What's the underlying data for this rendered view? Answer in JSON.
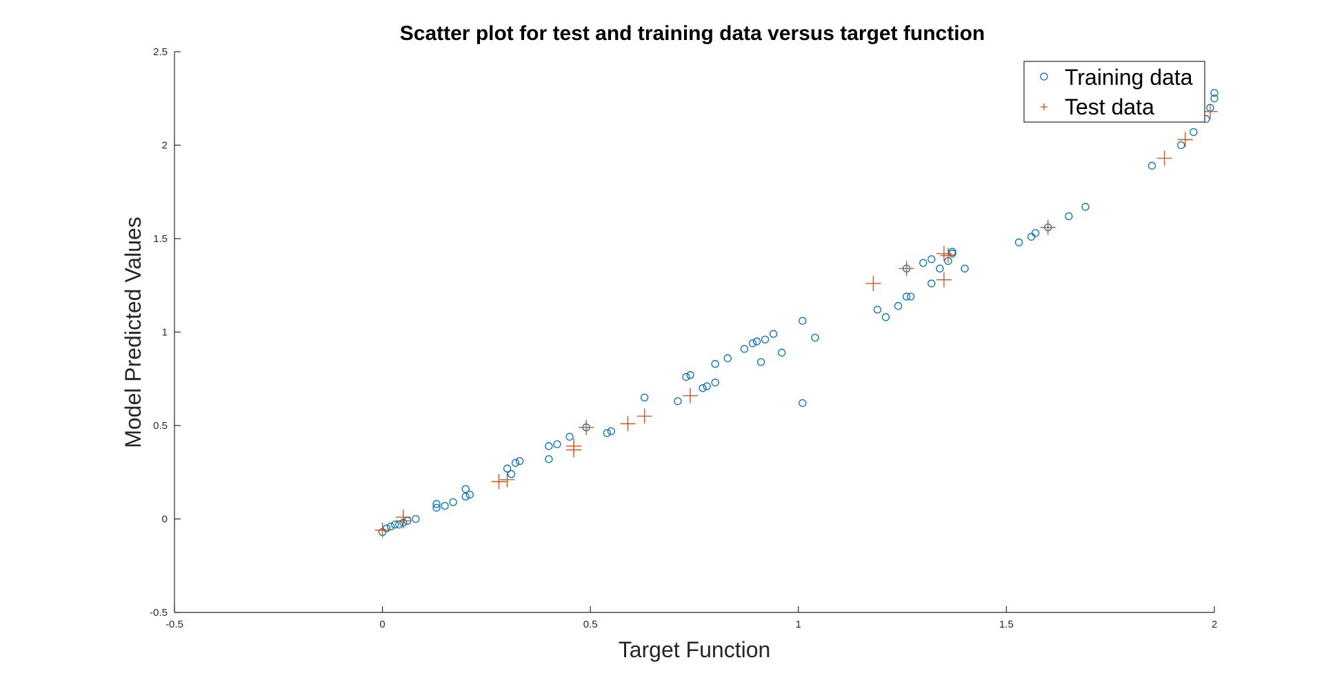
{
  "chart_data": {
    "type": "scatter",
    "title": "Scatter plot for test and training data versus target function",
    "xlabel": "Target Function",
    "ylabel": "Model Predicted Values",
    "xlim": [
      -0.5,
      2
    ],
    "ylim": [
      -0.5,
      2.5
    ],
    "xticks": [
      -0.5,
      0,
      0.5,
      1,
      1.5,
      2
    ],
    "yticks": [
      -0.5,
      0,
      0.5,
      1,
      1.5,
      2,
      2.5
    ],
    "xtick_labels": [
      "-0.5",
      "0",
      "0.5",
      "1",
      "1.5",
      "2"
    ],
    "ytick_labels": [
      "-0.5",
      "0",
      "0.5",
      "1",
      "1.5",
      "2",
      "2.5"
    ],
    "legend_position": "top-right",
    "series": [
      {
        "name": "Training data",
        "marker": "circle",
        "color": "#0072BD",
        "x": [
          0.0,
          0.01,
          0.02,
          0.03,
          0.04,
          0.05,
          0.06,
          0.08,
          0.13,
          0.13,
          0.15,
          0.17,
          0.2,
          0.2,
          0.21,
          0.3,
          0.31,
          0.32,
          0.33,
          0.4,
          0.4,
          0.42,
          0.45,
          0.49,
          0.54,
          0.55,
          0.63,
          0.71,
          0.73,
          0.74,
          0.77,
          0.78,
          0.8,
          0.8,
          0.83,
          0.87,
          0.89,
          0.9,
          0.91,
          0.92,
          0.94,
          0.96,
          1.01,
          1.01,
          1.04,
          1.19,
          1.21,
          1.24,
          1.26,
          1.26,
          1.27,
          1.3,
          1.32,
          1.32,
          1.34,
          1.36,
          1.37,
          1.37,
          1.4,
          1.53,
          1.56,
          1.57,
          1.6,
          1.65,
          1.69,
          1.85,
          1.92,
          1.95,
          1.98,
          1.99,
          2.0,
          2.0
        ],
        "y": [
          -0.07,
          -0.05,
          -0.04,
          -0.03,
          -0.03,
          -0.02,
          -0.01,
          0.0,
          0.06,
          0.08,
          0.07,
          0.09,
          0.12,
          0.16,
          0.13,
          0.27,
          0.24,
          0.3,
          0.31,
          0.32,
          0.39,
          0.4,
          0.44,
          0.49,
          0.46,
          0.47,
          0.65,
          0.63,
          0.76,
          0.77,
          0.7,
          0.71,
          0.73,
          0.83,
          0.86,
          0.91,
          0.94,
          0.95,
          0.84,
          0.96,
          0.99,
          0.89,
          1.06,
          0.62,
          0.97,
          1.12,
          1.08,
          1.14,
          1.19,
          1.34,
          1.19,
          1.37,
          1.26,
          1.39,
          1.34,
          1.38,
          1.42,
          1.43,
          1.34,
          1.48,
          1.51,
          1.53,
          1.56,
          1.62,
          1.67,
          1.89,
          2.0,
          2.07,
          2.14,
          2.2,
          2.25,
          2.28
        ]
      },
      {
        "name": "Test data",
        "marker": "plus",
        "color": "#D95319",
        "x": [
          0.0,
          0.05,
          0.05,
          0.28,
          0.3,
          0.46,
          0.46,
          0.49,
          0.59,
          0.63,
          0.74,
          1.18,
          1.26,
          1.35,
          1.35,
          1.36,
          1.6,
          1.88,
          1.93,
          1.99
        ],
        "y": [
          -0.06,
          -0.01,
          0.01,
          0.2,
          0.21,
          0.37,
          0.39,
          0.49,
          0.51,
          0.55,
          0.66,
          1.26,
          1.34,
          1.28,
          1.42,
          1.41,
          1.56,
          1.93,
          2.03,
          2.18
        ]
      }
    ]
  }
}
